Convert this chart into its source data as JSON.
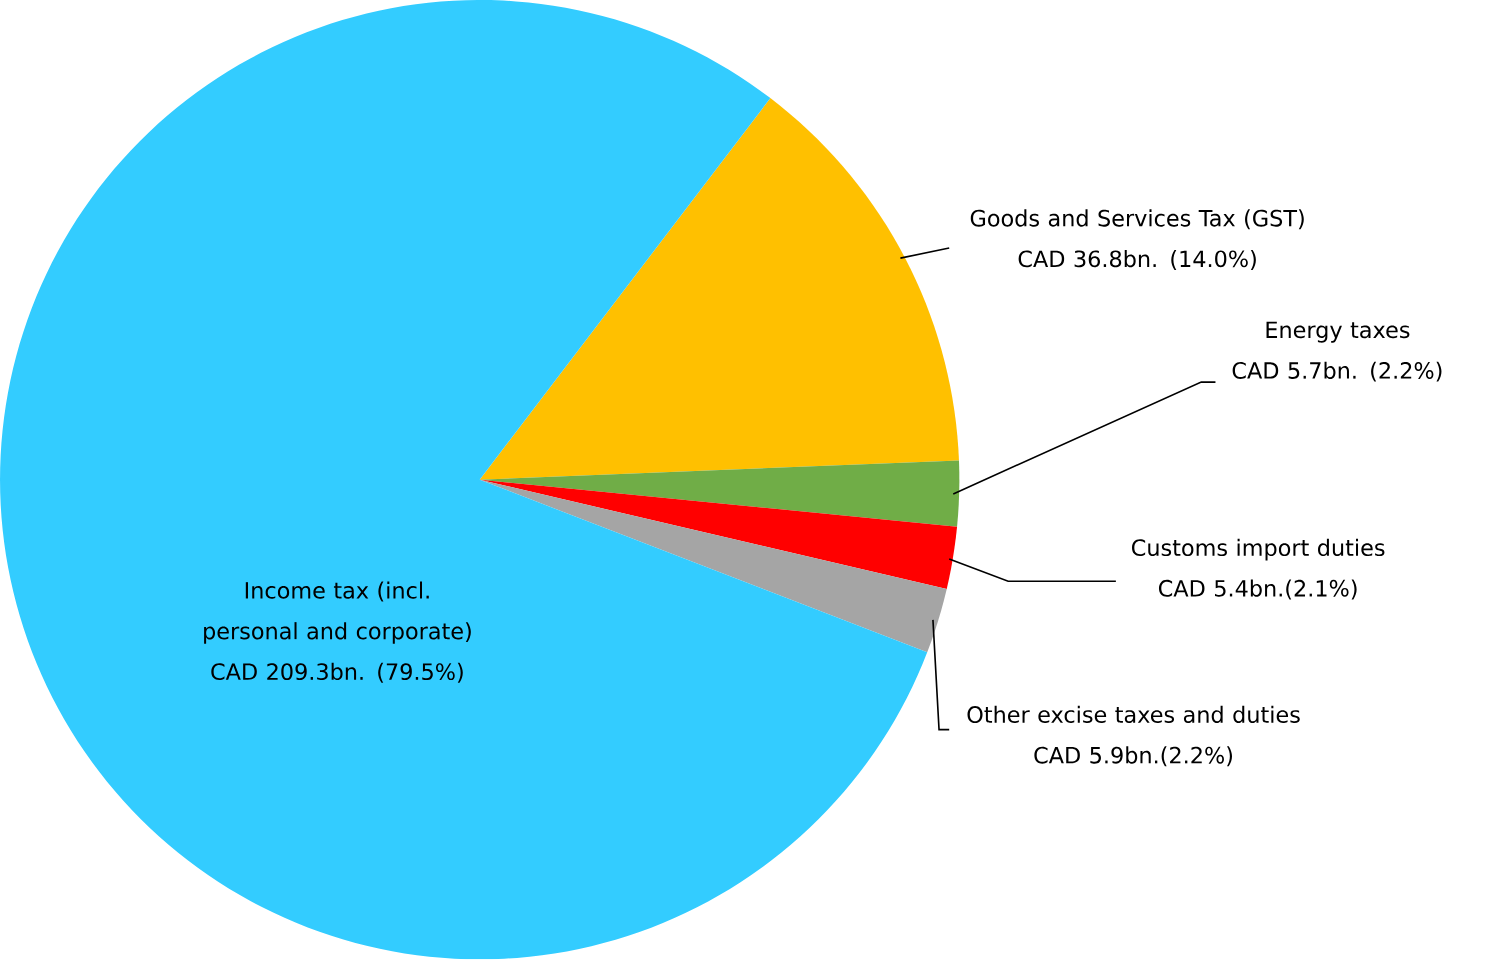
{
  "chart_data": {
    "type": "pie",
    "categories": [
      "Goods and Services Tax (GST)",
      "Energy taxes",
      "Customs import duties",
      "Other excise taxes and duties",
      "Income tax (incl. personal and corporate)"
    ],
    "values": [
      14.0,
      2.2,
      2.1,
      2.2,
      79.5
    ],
    "colors": [
      "#ffc000",
      "#70ad47",
      "#ff0000",
      "#a5a5a5",
      "#33ccff"
    ],
    "value_labels": [
      "CAD 36.8bn. (14.0%)",
      "CAD 5.7bn. (2.2%)",
      "CAD 5.4bn.(2.1%)",
      "CAD 5.9bn.(2.2%)",
      "CAD 209.3bn. (79.5%)"
    ]
  }
}
